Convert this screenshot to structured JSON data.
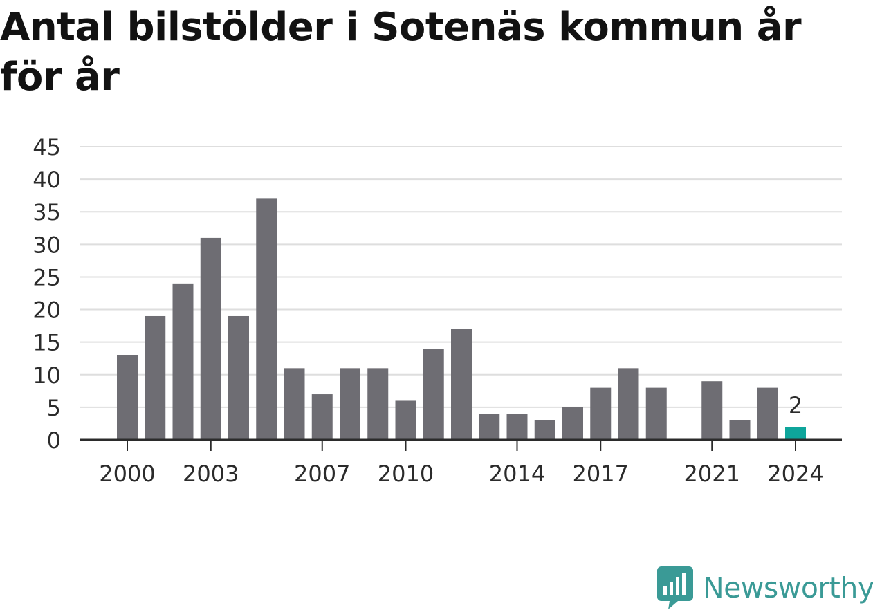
{
  "chart_data": {
    "type": "bar",
    "title": "Antal bilstölder i Sotenäs kommun år för år",
    "xlabel": "",
    "ylabel": "",
    "ylim": [
      0,
      45
    ],
    "yticks": [
      0,
      5,
      10,
      15,
      20,
      25,
      30,
      35,
      40,
      45
    ],
    "xticks": [
      "2000",
      "2003",
      "2007",
      "2010",
      "2014",
      "2017",
      "2021",
      "2024"
    ],
    "grid": true,
    "categories": [
      "2000",
      "2001",
      "2002",
      "2003",
      "2004",
      "2005",
      "2006",
      "2007",
      "2008",
      "2009",
      "2010",
      "2011",
      "2012",
      "2013",
      "2014",
      "2015",
      "2016",
      "2017",
      "2018",
      "2019",
      "2020",
      "2021",
      "2022",
      "2023",
      "2024"
    ],
    "values": [
      13,
      19,
      24,
      31,
      19,
      37,
      11,
      7,
      11,
      11,
      6,
      14,
      17,
      4,
      4,
      3,
      5,
      8,
      11,
      8,
      0,
      9,
      3,
      8,
      2
    ],
    "highlight": {
      "category": "2024",
      "label": "2"
    },
    "colors": {
      "bar": "#6e6d73",
      "highlight": "#0ea59b",
      "grid": "#dedede",
      "axis": "#2b2b2b"
    }
  },
  "brand": {
    "name": "Newsworthy",
    "icon": "newsworthy-logo-icon",
    "color": "#3a9a96"
  }
}
